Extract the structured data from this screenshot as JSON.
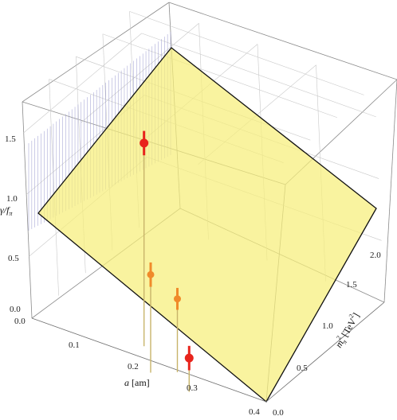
{
  "chart_data": {
    "type": "scatter",
    "subtype": "3d-surface-with-points",
    "axes": {
      "a": {
        "label_symbol": "a",
        "label_unit": "[am]",
        "ticks": [
          "0.0",
          "0.1",
          "0.2",
          "0.3",
          "0.4"
        ],
        "range": [
          0,
          0.4
        ]
      },
      "m": {
        "label_symbol": "m",
        "label_sub": "π",
        "label_sup": "2",
        "label_unit": "[TeV",
        "label_unit_sup": "2",
        "label_unit_end": "]",
        "ticks": [
          "0.0",
          "0.5",
          "1.0",
          "1.5",
          "2.0"
        ],
        "range": [
          0,
          2.2
        ]
      },
      "z": {
        "label_symbol": "γ/f",
        "label_sub": "π",
        "ticks": [
          "0.0",
          "0.5",
          "1.0",
          "1.5"
        ],
        "range": [
          0,
          1.75
        ]
      }
    },
    "surface": {
      "type": "plane",
      "color": "#f6ef7a"
    },
    "points": [
      {
        "a": 0.15,
        "m2": 0.6,
        "z": 1.45,
        "err": 0.06,
        "color": "#e8241c",
        "size": "large"
      },
      {
        "a": 0.19,
        "m2": 0.2,
        "z": 0.6,
        "err": 0.06,
        "color": "#f08a2a",
        "size": "medium"
      },
      {
        "a": 0.22,
        "m2": 0.35,
        "z": 0.4,
        "err": 0.05,
        "color": "#f08a2a",
        "size": "medium"
      },
      {
        "a": 0.26,
        "m2": 0.1,
        "z": 0.08,
        "err": 0.06,
        "color": "#e8241c",
        "size": "large"
      }
    ],
    "grid": true
  }
}
